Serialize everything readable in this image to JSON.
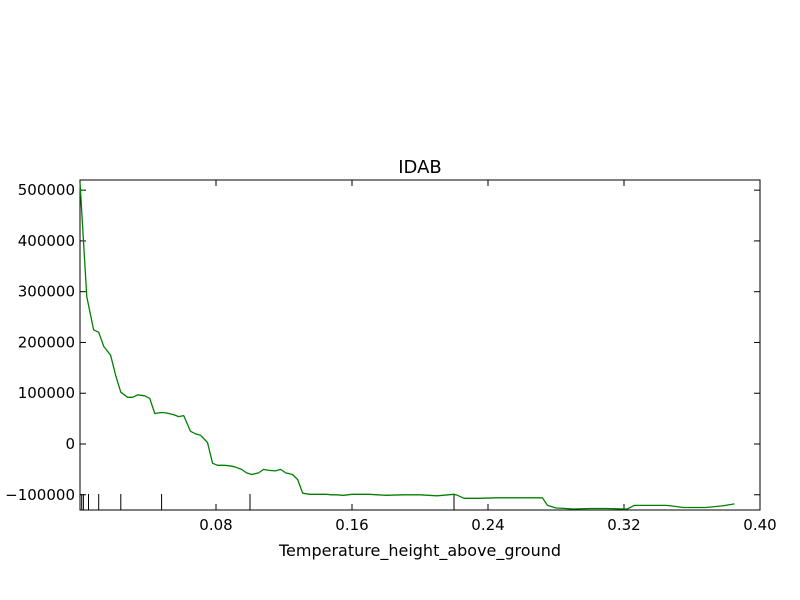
{
  "chart_data": {
    "type": "line",
    "title": "IDAB",
    "xlabel": "Temperature_height_above_ground",
    "ylabel": "",
    "xlim": [
      0.0,
      0.4
    ],
    "ylim": [
      -130000,
      520000
    ],
    "xticks": [
      0.08,
      0.16,
      0.24,
      0.32,
      0.4
    ],
    "xtick_labels": [
      "0.08",
      "0.16",
      "0.24",
      "0.32",
      "0.40"
    ],
    "yticks": [
      500000,
      400000,
      300000,
      200000,
      100000,
      0,
      -100000
    ],
    "ytick_labels": [
      "500000",
      "400000",
      "300000",
      "200000",
      "100000",
      "0",
      "−100000"
    ],
    "grid": false,
    "series": [
      {
        "name": "",
        "color": "#008000",
        "x": [
          0.0,
          0.004,
          0.008,
          0.011,
          0.014,
          0.018,
          0.021,
          0.024,
          0.028,
          0.031,
          0.034,
          0.038,
          0.041,
          0.044,
          0.048,
          0.051,
          0.055,
          0.058,
          0.061,
          0.065,
          0.068,
          0.071,
          0.075,
          0.078,
          0.081,
          0.085,
          0.088,
          0.091,
          0.095,
          0.098,
          0.101,
          0.105,
          0.108,
          0.111,
          0.115,
          0.118,
          0.121,
          0.125,
          0.128,
          0.131,
          0.135,
          0.138,
          0.142,
          0.145,
          0.148,
          0.151,
          0.155,
          0.16,
          0.17,
          0.18,
          0.19,
          0.2,
          0.21,
          0.22,
          0.222,
          0.226,
          0.235,
          0.245,
          0.26,
          0.272,
          0.275,
          0.28,
          0.286,
          0.29,
          0.3,
          0.31,
          0.32,
          0.322,
          0.326,
          0.33,
          0.345,
          0.35,
          0.355,
          0.36,
          0.368,
          0.375,
          0.378,
          0.385
        ],
        "y": [
          515000,
          290000,
          225000,
          220000,
          192000,
          175000,
          135000,
          102000,
          92000,
          92000,
          97000,
          95000,
          90000,
          60000,
          62000,
          61000,
          58000,
          54000,
          56000,
          25000,
          20000,
          17000,
          3000,
          -38000,
          -42000,
          -42000,
          -43000,
          -45000,
          -50000,
          -57000,
          -60000,
          -57000,
          -50000,
          -52000,
          -53000,
          -50000,
          -57000,
          -60000,
          -70000,
          -97000,
          -99000,
          -99000,
          -99000,
          -99000,
          -100000,
          -100000,
          -101000,
          -99000,
          -99000,
          -101000,
          -100000,
          -100000,
          -102000,
          -99000,
          -101000,
          -107000,
          -107000,
          -106000,
          -106000,
          -106000,
          -121000,
          -126000,
          -127000,
          -128000,
          -127000,
          -127000,
          -128000,
          -128000,
          -121000,
          -121000,
          -121000,
          -123000,
          -125000,
          -125000,
          -125000,
          -123000,
          -122000,
          -118000
        ]
      }
    ],
    "rug_x": [
      0.001,
      0.002,
      0.005,
      0.011,
      0.024,
      0.048,
      0.1,
      0.22
    ]
  }
}
